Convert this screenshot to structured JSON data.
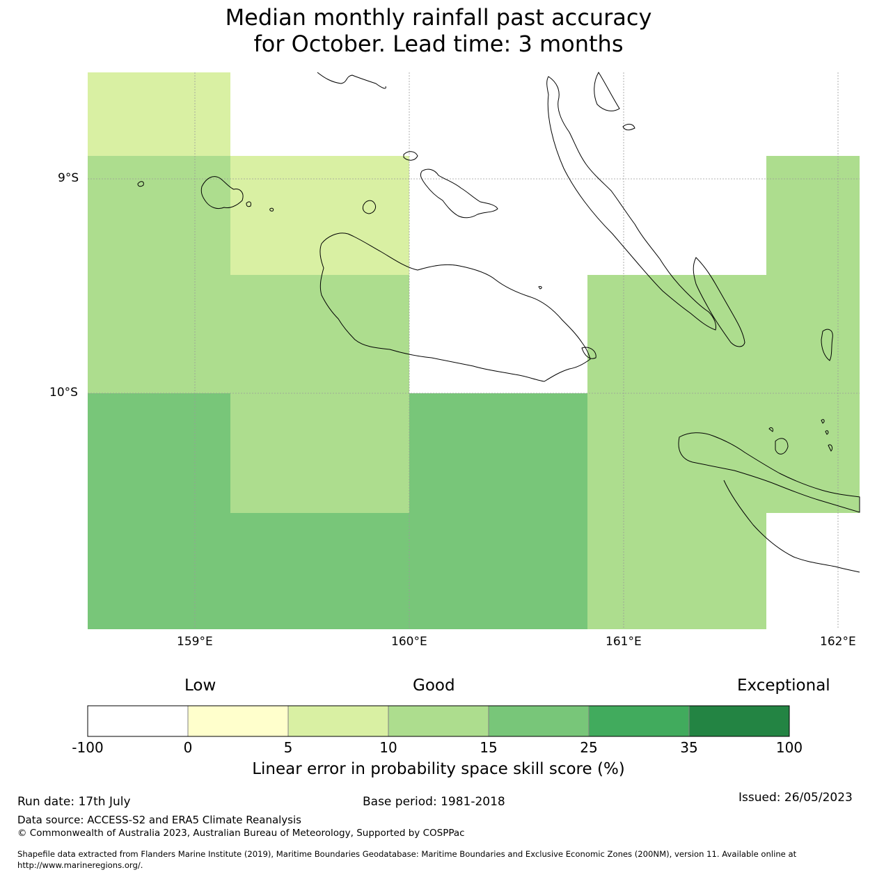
{
  "title": {
    "line1": "Median monthly rainfall past accuracy",
    "line2": "for October. Lead time: 3 months"
  },
  "map": {
    "lon_ticks": [
      "159°E",
      "160°E",
      "161°E",
      "162°E"
    ],
    "lat_ticks": [
      "9°S",
      "10°S"
    ],
    "land_outline_color": "#000000",
    "gridline_color": "#9a9a9a"
  },
  "colorbar": {
    "category_labels": [
      "Low",
      "Good",
      "Exceptional"
    ],
    "boundaries": [
      "-100",
      "0",
      "5",
      "10",
      "15",
      "25",
      "35",
      "100"
    ],
    "colors": [
      "#ffffff",
      "#ffffcc",
      "#d9f0a3",
      "#addd8e",
      "#78c679",
      "#41ab5d",
      "#238443"
    ],
    "label": "Linear error in probability space skill score (%)"
  },
  "footer": {
    "run_date": "Run date: 17th July",
    "base_period": "Base period: 1981-2018",
    "issued": "Issued: 26/05/2023",
    "data_source": "Data source: ACCESS-S2 and ERA5 Climate Reanalysis",
    "copyright": "© Commonwealth of Australia 2023, Australian Bureau of Meteorology, Supported by COSPPac",
    "shapefile_line1": "Shapefile data extracted from Flanders Marine Institute (2019), Maritime Boundaries Geodatabase: Maritime Boundaries and Exclusive Economic Zones (200NM), version 11. Available online at",
    "shapefile_line2": "http://www.marineregions.org/."
  }
}
